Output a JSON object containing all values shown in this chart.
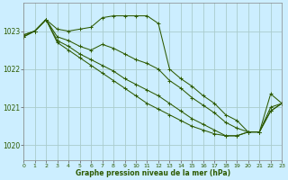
{
  "title": "Graphe pression niveau de la mer (hPa)",
  "background_color": "#cceeff",
  "grid_color": "#aacccc",
  "line_color": "#2d5a00",
  "xlim": [
    0,
    23
  ],
  "ylim": [
    1019.6,
    1023.75
  ],
  "yticks": [
    1020,
    1021,
    1022,
    1023
  ],
  "xticks": [
    0,
    1,
    2,
    3,
    4,
    5,
    6,
    7,
    8,
    9,
    10,
    11,
    12,
    13,
    14,
    15,
    16,
    17,
    18,
    19,
    20,
    21,
    22,
    23
  ],
  "series": [
    {
      "x": [
        0,
        1,
        2,
        3,
        4,
        5,
        6,
        7,
        8,
        9,
        10,
        11,
        12,
        13,
        14,
        15,
        16,
        17,
        18,
        19,
        20,
        21,
        22,
        23
      ],
      "y": [
        1022.9,
        1023.0,
        1023.3,
        1023.05,
        1023.0,
        1023.05,
        1023.1,
        1023.35,
        1023.4,
        1023.4,
        1023.4,
        1023.4,
        1023.2,
        1022.0,
        1021.75,
        1021.55,
        1021.3,
        1021.1,
        1020.8,
        1020.65,
        1020.35,
        1020.35,
        1021.35,
        1021.1
      ]
    },
    {
      "x": [
        0,
        1,
        2,
        3,
        4,
        5,
        6,
        7,
        8,
        9,
        10,
        11,
        12,
        13,
        14,
        15,
        16,
        17,
        18,
        19,
        20,
        21,
        22,
        23
      ],
      "y": [
        1022.9,
        1023.0,
        1023.3,
        1022.85,
        1022.75,
        1022.6,
        1022.5,
        1022.65,
        1022.55,
        1022.4,
        1022.25,
        1022.15,
        1022.0,
        1021.7,
        1021.5,
        1021.25,
        1021.05,
        1020.85,
        1020.6,
        1020.45,
        1020.35,
        1020.35,
        1021.0,
        1021.1
      ]
    },
    {
      "x": [
        0,
        1,
        2,
        3,
        4,
        5,
        6,
        7,
        8,
        9,
        10,
        11,
        12,
        13,
        14,
        15,
        16,
        17,
        18,
        19,
        20,
        21,
        22,
        23
      ],
      "y": [
        1022.85,
        1023.0,
        1023.3,
        1022.75,
        1022.6,
        1022.4,
        1022.25,
        1022.1,
        1021.95,
        1021.75,
        1021.6,
        1021.45,
        1021.3,
        1021.1,
        1020.9,
        1020.7,
        1020.55,
        1020.4,
        1020.25,
        1020.25,
        1020.35,
        1020.35,
        1020.9,
        1021.1
      ]
    },
    {
      "x": [
        0,
        1,
        2,
        3,
        4,
        5,
        6,
        7,
        8,
        9,
        10,
        11,
        12,
        13,
        14,
        15,
        16,
        17,
        18,
        19,
        20,
        21,
        22,
        23
      ],
      "y": [
        1022.85,
        1023.0,
        1023.3,
        1022.7,
        1022.5,
        1022.3,
        1022.1,
        1021.9,
        1021.7,
        1021.5,
        1021.3,
        1021.1,
        1020.95,
        1020.8,
        1020.65,
        1020.5,
        1020.4,
        1020.3,
        1020.25,
        1020.25,
        1020.35,
        1020.35,
        1020.9,
        1021.1
      ]
    }
  ]
}
